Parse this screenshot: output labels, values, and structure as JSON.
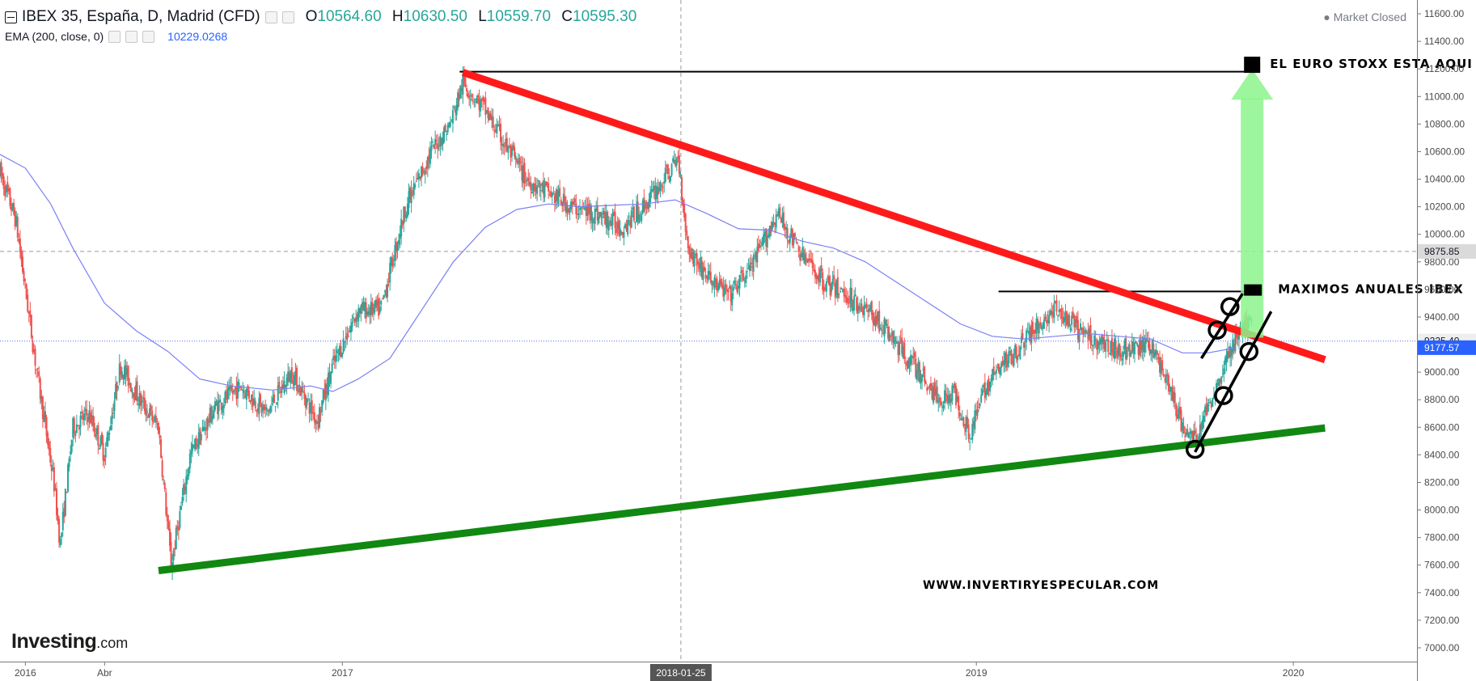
{
  "header": {
    "symbol_title": "IBEX 35, España, D, Madrid (CFD)",
    "ohlc": [
      {
        "key": "O",
        "value": "10564.60"
      },
      {
        "key": "H",
        "value": "10630.50"
      },
      {
        "key": "L",
        "value": "10559.70"
      },
      {
        "key": "C",
        "value": "10595.30"
      }
    ],
    "ema_label": "EMA (200, close, 0)",
    "ema_value": "10229.0268",
    "market_status": "Market Closed"
  },
  "logo": {
    "name": "Investing",
    "suffix": ".com"
  },
  "colors": {
    "candle_up": "#26a69a",
    "candle_down": "#ef5350",
    "ema": "#7b7ff5",
    "resistance_red": "#ff1a1a",
    "support_green": "#118811",
    "arrow_green": "#8cf58c",
    "current_price_badge": "#2962ff",
    "text": "#131722"
  },
  "chart_data": {
    "type": "candlestick",
    "title": "IBEX 35, España, D, Madrid (CFD)",
    "xlabel": "",
    "ylabel": "",
    "ylim": [
      6900,
      11700
    ],
    "y_ticks": [
      7000,
      7200,
      7400,
      7600,
      7800,
      8000,
      8200,
      8400,
      8600,
      8800,
      9000,
      9200,
      9400,
      9600,
      9800,
      10000,
      10200,
      10400,
      10600,
      10800,
      11000,
      11200,
      11400,
      11600
    ],
    "y_tick_labels": [
      "7000.00",
      "7200.00",
      "7400.00",
      "7600.00",
      "7800.00",
      "8000.00",
      "8200.00",
      "8400.00",
      "8600.00",
      "8800.00",
      "9000.00",
      "9200.00",
      "9400.00",
      "9600.00",
      "9800.00",
      "10000.00",
      "10200.00",
      "10400.00",
      "10600.00",
      "10800.00",
      "11000.00",
      "11200.00",
      "11400.00",
      "11600.00"
    ],
    "x_ticks": [
      {
        "label": "2016",
        "t": 2016.0
      },
      {
        "label": "Abr",
        "t": 2016.25
      },
      {
        "label": "2017",
        "t": 2017.0
      },
      {
        "label": "2018-01-25",
        "t": 2018.068,
        "highlight": true
      },
      {
        "label": "2019",
        "t": 2019.0
      },
      {
        "label": "2020",
        "t": 2020.0
      }
    ],
    "xlim": [
      2015.92,
      2020.39
    ],
    "grid": false,
    "price_path": [
      [
        2015.92,
        10450
      ],
      [
        2015.97,
        10100
      ],
      [
        2016.03,
        9100
      ],
      [
        2016.09,
        8200
      ],
      [
        2016.11,
        7750
      ],
      [
        2016.15,
        8600
      ],
      [
        2016.2,
        8700
      ],
      [
        2016.25,
        8400
      ],
      [
        2016.3,
        9050
      ],
      [
        2016.36,
        8800
      ],
      [
        2016.42,
        8600
      ],
      [
        2016.46,
        7600
      ],
      [
        2016.52,
        8400
      ],
      [
        2016.6,
        8750
      ],
      [
        2016.68,
        8900
      ],
      [
        2016.76,
        8700
      ],
      [
        2016.84,
        9000
      ],
      [
        2016.92,
        8650
      ],
      [
        2016.97,
        9050
      ],
      [
        2017.05,
        9450
      ],
      [
        2017.12,
        9450
      ],
      [
        2017.2,
        10200
      ],
      [
        2017.28,
        10600
      ],
      [
        2017.34,
        10800
      ],
      [
        2017.38,
        11100
      ],
      [
        2017.45,
        10900
      ],
      [
        2017.5,
        10700
      ],
      [
        2017.58,
        10400
      ],
      [
        2017.65,
        10300
      ],
      [
        2017.72,
        10200
      ],
      [
        2017.8,
        10150
      ],
      [
        2017.88,
        10050
      ],
      [
        2017.95,
        10200
      ],
      [
        2018.0,
        10350
      ],
      [
        2018.06,
        10550
      ],
      [
        2018.09,
        9900
      ],
      [
        2018.15,
        9700
      ],
      [
        2018.22,
        9550
      ],
      [
        2018.3,
        9800
      ],
      [
        2018.37,
        10150
      ],
      [
        2018.45,
        9850
      ],
      [
        2018.52,
        9650
      ],
      [
        2018.6,
        9550
      ],
      [
        2018.68,
        9400
      ],
      [
        2018.75,
        9200
      ],
      [
        2018.82,
        9000
      ],
      [
        2018.88,
        8800
      ],
      [
        2018.93,
        8850
      ],
      [
        2018.98,
        8550
      ],
      [
        2019.03,
        8900
      ],
      [
        2019.1,
        9100
      ],
      [
        2019.18,
        9300
      ],
      [
        2019.25,
        9450
      ],
      [
        2019.32,
        9300
      ],
      [
        2019.4,
        9200
      ],
      [
        2019.48,
        9150
      ],
      [
        2019.55,
        9200
      ],
      [
        2019.6,
        8950
      ],
      [
        2019.65,
        8600
      ],
      [
        2019.69,
        8500
      ],
      [
        2019.74,
        8800
      ],
      [
        2019.79,
        9100
      ],
      [
        2019.83,
        9300
      ],
      [
        2019.87,
        9350
      ]
    ],
    "ema": {
      "name": "EMA (200, close, 0)",
      "points": [
        [
          2015.92,
          10580
        ],
        [
          2016.0,
          10480
        ],
        [
          2016.08,
          10220
        ],
        [
          2016.15,
          9900
        ],
        [
          2016.25,
          9500
        ],
        [
          2016.35,
          9300
        ],
        [
          2016.45,
          9150
        ],
        [
          2016.55,
          8950
        ],
        [
          2016.65,
          8900
        ],
        [
          2016.78,
          8870
        ],
        [
          2016.9,
          8900
        ],
        [
          2016.97,
          8860
        ],
        [
          2017.05,
          8950
        ],
        [
          2017.15,
          9100
        ],
        [
          2017.25,
          9450
        ],
        [
          2017.35,
          9800
        ],
        [
          2017.45,
          10050
        ],
        [
          2017.55,
          10180
        ],
        [
          2017.65,
          10220
        ],
        [
          2017.75,
          10200
        ],
        [
          2017.85,
          10210
        ],
        [
          2017.95,
          10220
        ],
        [
          2018.05,
          10250
        ],
        [
          2018.15,
          10150
        ],
        [
          2018.25,
          10040
        ],
        [
          2018.35,
          10030
        ],
        [
          2018.45,
          9950
        ],
        [
          2018.55,
          9900
        ],
        [
          2018.65,
          9800
        ],
        [
          2018.75,
          9650
        ],
        [
          2018.85,
          9500
        ],
        [
          2018.95,
          9350
        ],
        [
          2019.05,
          9260
        ],
        [
          2019.15,
          9240
        ],
        [
          2019.25,
          9260
        ],
        [
          2019.35,
          9280
        ],
        [
          2019.45,
          9260
        ],
        [
          2019.55,
          9240
        ],
        [
          2019.65,
          9140
        ],
        [
          2019.73,
          9140
        ],
        [
          2019.82,
          9177
        ]
      ]
    },
    "price_labels": [
      {
        "value": 9875.85,
        "label": "9875.85",
        "style": "grey"
      },
      {
        "value": 9225.4,
        "label": "9225.40",
        "style": "light"
      },
      {
        "value": 9177.57,
        "label": "9177.57",
        "style": "blue"
      }
    ],
    "crosshair": {
      "t": 2018.068,
      "price": 9875.85
    },
    "annotations": {
      "resistance_line": {
        "from": [
          2017.38,
          11175
        ],
        "to": [
          2020.1,
          9090
        ]
      },
      "support_line": {
        "from": [
          2016.42,
          7560
        ],
        "to": [
          2020.1,
          8595
        ]
      },
      "thin_support": {
        "from": [
          2018.98,
          8300
        ],
        "to": [
          2020.1,
          8615
        ]
      },
      "hline_high": {
        "from": [
          2017.37,
          11180
        ],
        "to": [
          2019.87,
          11180
        ]
      },
      "hline_annual": {
        "from": [
          2019.07,
          9585
        ],
        "to": [
          2019.87,
          9585
        ]
      },
      "box_top": {
        "t": 2019.87,
        "price": 11230
      },
      "box_annual": {
        "t": 2019.87,
        "price": 9590
      },
      "green_arrow": {
        "t": 2019.87,
        "from_price": 9250,
        "to_price": 11200
      },
      "channel_upper": {
        "from": [
          2019.71,
          9100
        ],
        "to": [
          2019.84,
          9570
        ]
      },
      "channel_lower": {
        "from": [
          2019.69,
          8420
        ],
        "to": [
          2019.93,
          9440
        ]
      },
      "circles": [
        [
          2019.69,
          8440
        ],
        [
          2019.78,
          8830
        ],
        [
          2019.86,
          9150
        ],
        [
          2019.76,
          9305
        ],
        [
          2019.8,
          9475
        ]
      ],
      "text_top": "EL EURO STOXX ESTA AQUI",
      "text_annual": "MAXIMOS ANUALES IBEX",
      "watermark": "WWW.INVERTIRYESPECULAR.COM"
    }
  }
}
